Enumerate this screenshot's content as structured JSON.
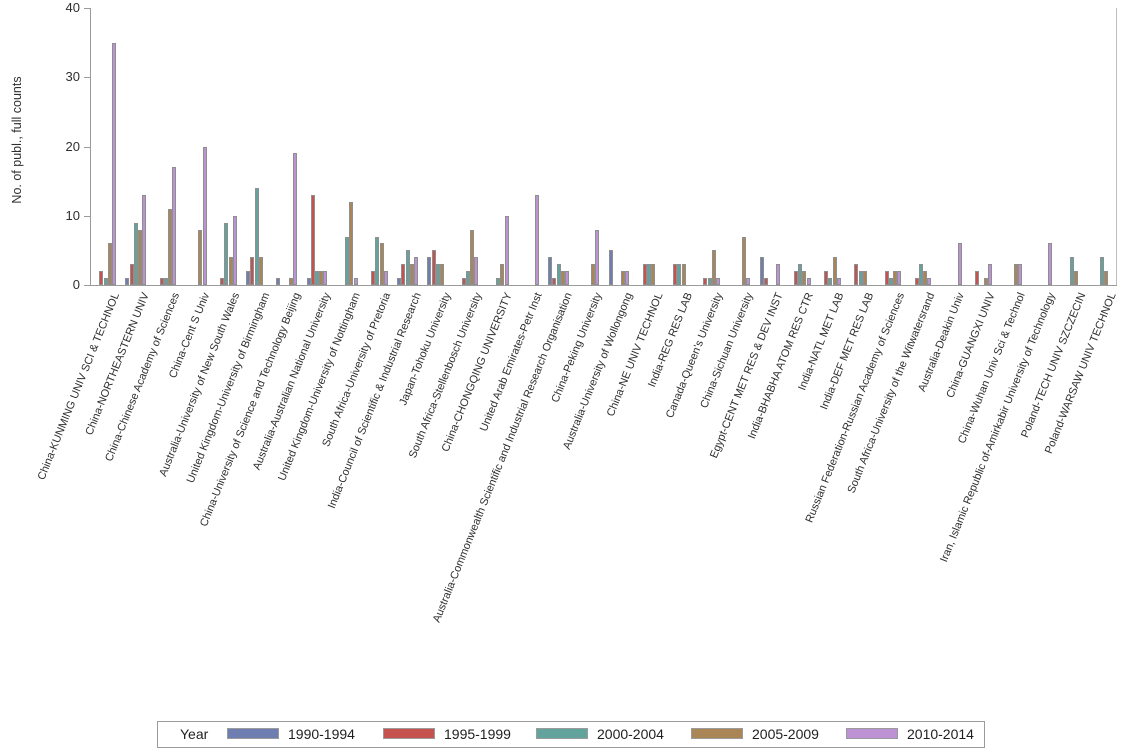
{
  "y_axis": {
    "title": "No. of publ., full counts",
    "ticks": [
      0,
      10,
      20,
      30,
      40
    ],
    "max": 40
  },
  "legend": {
    "title": "Year"
  },
  "chart_data": {
    "type": "bar",
    "title": "",
    "xlabel": "",
    "ylabel": "No. of publ., full counts",
    "ylim": [
      0,
      40
    ],
    "yticks": [
      0,
      10,
      20,
      30,
      40
    ],
    "grid": false,
    "legend_position": "bottom",
    "legend_title": "Year",
    "categories": [
      "China-KUNMING UNIV SCI & TECHNOL",
      "China-NORTHEASTERN UNIV",
      "China-Chinese Academy of Sciences",
      "China-Cent S Univ",
      "Australia-University of New South Wales",
      "United Kingdom-University of Birmingham",
      "China-University of Science and Technology Beijing",
      "Australia-Australian National University",
      "United Kingdom-University of Nottingham",
      "South Africa-University of Pretoria",
      "India-Council of Scientific & Industrial Research",
      "Japan-Tohoku University",
      "South Africa-Stellenbosch University",
      "China-CHONGQING UNIVERSITY",
      "United Arab Emirates-Petr Inst",
      "Australia-Commonwealth Scientific and Industrial Research Organisation",
      "China-Peking University",
      "Australia-University of Wollongong",
      "China-NE UNIV TECHNOL",
      "India-REG RES LAB",
      "Canada-Queen's University",
      "China-Sichuan University",
      "Egypt-CENT MET RES & DEV INST",
      "India-BHABHA ATOM RES CTR",
      "India-NATL MET LAB",
      "India-DEF MET RES LAB",
      "Russian Federation-Russian Academy of Sciences",
      "South Africa-University of the Witwatersrand",
      "Australia-Deakin Univ",
      "China-GUANGXI UNIV",
      "China-Wuhan Univ Sci & Technol",
      "Iran, Islamic Republic of-Amirkabir University of Technology",
      "Poland-TECH UNIV SZCZECIN",
      "Poland-WARSAW UNIV TECHNOL"
    ],
    "series": [
      {
        "name": "1990-1994",
        "color": "#6e7eb1",
        "values": [
          0,
          1,
          0,
          0,
          0,
          2,
          1,
          1,
          0,
          0,
          1,
          4,
          0,
          0,
          0,
          4,
          0,
          5,
          0,
          0,
          0,
          0,
          4,
          0,
          0,
          0,
          0,
          0,
          0,
          0,
          0,
          0,
          0,
          0
        ]
      },
      {
        "name": "1995-1999",
        "color": "#c65250",
        "values": [
          2,
          3,
          1,
          0,
          1,
          4,
          0,
          13,
          0,
          2,
          3,
          5,
          1,
          0,
          0,
          1,
          0,
          0,
          3,
          3,
          1,
          0,
          1,
          2,
          2,
          3,
          2,
          1,
          0,
          2,
          0,
          0,
          0,
          0
        ]
      },
      {
        "name": "2000-2004",
        "color": "#63a39e",
        "values": [
          1,
          9,
          1,
          0,
          9,
          14,
          0,
          2,
          7,
          7,
          5,
          3,
          2,
          1,
          0,
          3,
          0,
          0,
          3,
          3,
          1,
          0,
          0,
          3,
          1,
          2,
          1,
          3,
          0,
          0,
          0,
          0,
          4,
          4
        ]
      },
      {
        "name": "2005-2009",
        "color": "#aa8656",
        "values": [
          6,
          8,
          11,
          8,
          4,
          4,
          1,
          2,
          12,
          6,
          3,
          3,
          8,
          3,
          0,
          2,
          3,
          2,
          3,
          3,
          5,
          7,
          0,
          2,
          4,
          2,
          2,
          2,
          0,
          1,
          3,
          0,
          2,
          2
        ]
      },
      {
        "name": "2010-2014",
        "color": "#bc92d4",
        "values": [
          35,
          13,
          17,
          20,
          10,
          0,
          19,
          2,
          1,
          2,
          4,
          0,
          4,
          10,
          13,
          2,
          8,
          2,
          0,
          0,
          1,
          1,
          3,
          1,
          1,
          0,
          2,
          1,
          6,
          3,
          3,
          6,
          0,
          0
        ]
      }
    ]
  }
}
